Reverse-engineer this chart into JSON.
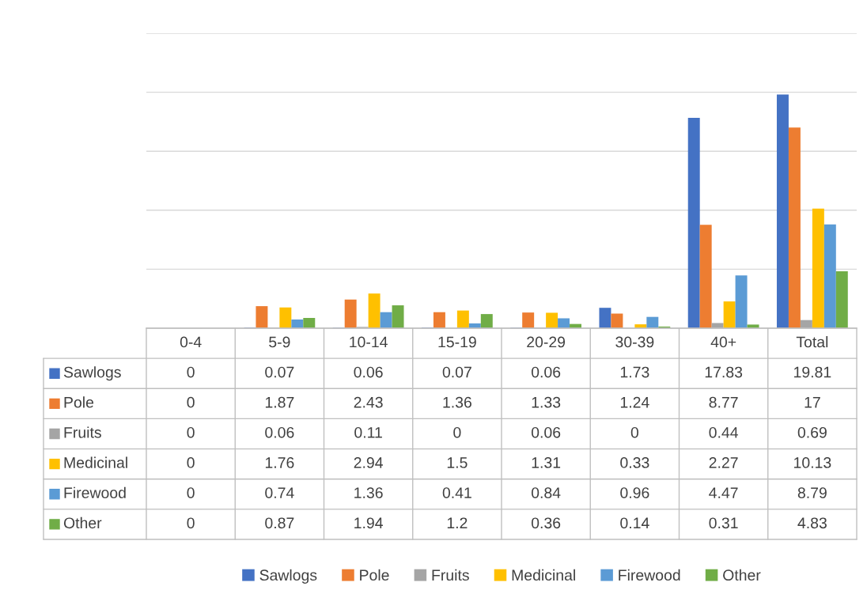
{
  "chart_data": {
    "type": "bar",
    "categories": [
      "0-4",
      "5-9",
      "10-14",
      "15-19",
      "20-29",
      "30-39",
      "40+",
      "Total"
    ],
    "series": [
      {
        "name": "Sawlogs",
        "color": "#4472c4",
        "values": [
          0,
          0.07,
          0.06,
          0.07,
          0.06,
          1.73,
          17.83,
          19.81
        ]
      },
      {
        "name": "Pole",
        "color": "#ed7d31",
        "values": [
          0,
          1.87,
          2.43,
          1.36,
          1.33,
          1.24,
          8.77,
          17
        ]
      },
      {
        "name": "Fruits",
        "color": "#a5a5a5",
        "values": [
          0,
          0.06,
          0.11,
          0,
          0.06,
          0,
          0.44,
          0.69
        ]
      },
      {
        "name": "Medicinal",
        "color": "#ffc000",
        "values": [
          0,
          1.76,
          2.94,
          1.5,
          1.31,
          0.33,
          2.27,
          10.13
        ]
      },
      {
        "name": "Firewood",
        "color": "#5b9bd5",
        "values": [
          0,
          0.74,
          1.36,
          0.41,
          0.84,
          0.96,
          4.47,
          8.79
        ]
      },
      {
        "name": "Other",
        "color": "#70ad47",
        "values": [
          0,
          0.87,
          1.94,
          1.2,
          0.36,
          0.14,
          0.31,
          4.83
        ]
      }
    ],
    "ylim": [
      0,
      25
    ],
    "yticks": [
      {
        "value": 0,
        "label": null
      },
      {
        "value": 5,
        "label": null
      },
      {
        "value": 10,
        "label": null
      },
      {
        "value": 15,
        "label": null
      },
      {
        "value": 20,
        "label": null
      },
      {
        "value": 25,
        "label": null
      }
    ],
    "grid": "y",
    "legend": "bottom",
    "data_labels": true
  }
}
